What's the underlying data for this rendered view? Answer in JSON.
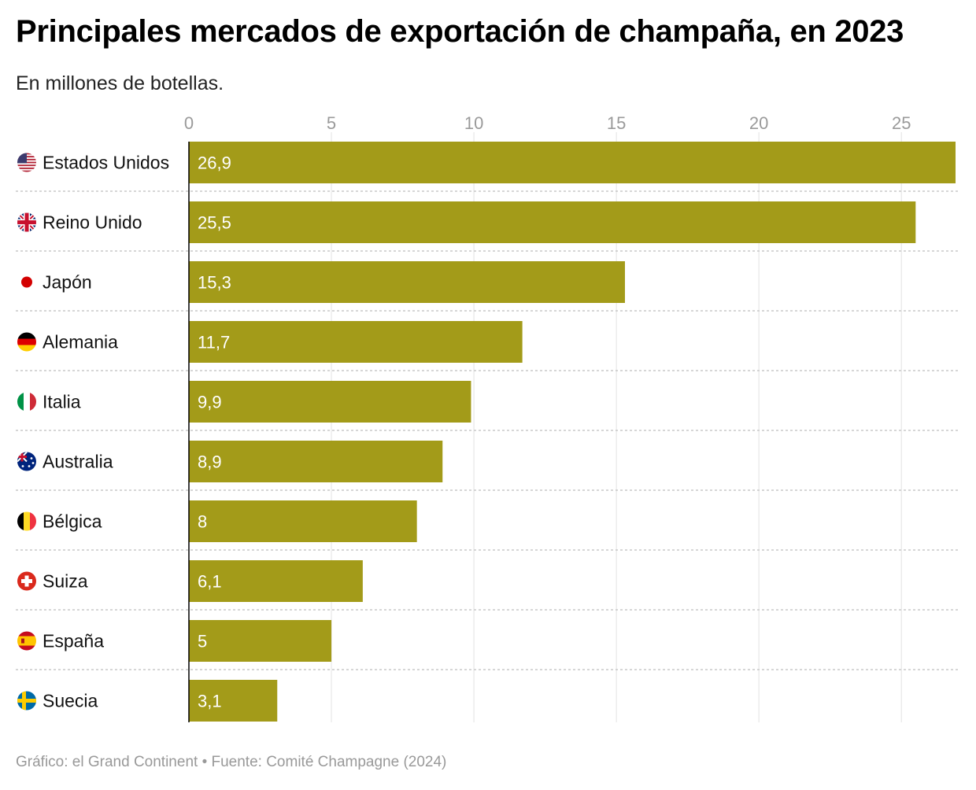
{
  "title": "Principales mercados de exportación de champaña, en 2023",
  "subtitle": "En millones de botellas.",
  "footer": "Gráfico: el Grand Continent • Fuente: Comité Champagne (2024)",
  "colors": {
    "bar": "#a39b19",
    "axis": "#000000",
    "grid": "#e2e2e2",
    "row_separator": "#c8c8c8"
  },
  "chart_data": {
    "type": "bar",
    "orientation": "horizontal",
    "title": "Principales mercados de exportación de champaña, en 2023",
    "subtitle": "En millones de botellas.",
    "categories": [
      "Estados Unidos",
      "Reino Unido",
      "Japón",
      "Alemania",
      "Italia",
      "Australia",
      "Bélgica",
      "Suiza",
      "España",
      "Suecia"
    ],
    "flags": [
      "us-flag-icon",
      "uk-flag-icon",
      "japan-flag-icon",
      "germany-flag-icon",
      "italy-flag-icon",
      "australia-flag-icon",
      "belgium-flag-icon",
      "switzerland-flag-icon",
      "spain-flag-icon",
      "sweden-flag-icon"
    ],
    "values": [
      26.9,
      25.5,
      15.3,
      11.7,
      9.9,
      8.9,
      8,
      6.1,
      5,
      3.1
    ],
    "value_labels": [
      "26,9",
      "25,5",
      "15,3",
      "11,7",
      "9,9",
      "8,9",
      "8",
      "6,1",
      "5",
      "3,1"
    ],
    "xticks": [
      0,
      5,
      10,
      15,
      20,
      25
    ],
    "xlim": [
      0,
      26.9
    ],
    "grid": true,
    "axis_position": "top"
  }
}
